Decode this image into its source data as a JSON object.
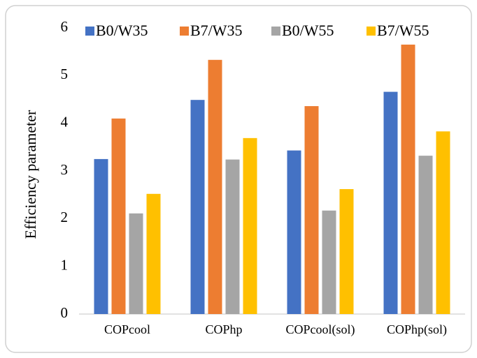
{
  "chart_data": {
    "type": "bar",
    "y_label": "Efficiency parameter",
    "categories": [
      "COPcool",
      "COPhp",
      "COPcool(sol)",
      "COPhp(sol)"
    ],
    "series": [
      {
        "name": "B0/W35",
        "color": "#4472c4",
        "values": [
          3.25,
          4.49,
          3.43,
          4.66
        ]
      },
      {
        "name": "B7/W35",
        "color": "#ed7d31",
        "values": [
          4.1,
          5.33,
          4.36,
          5.65
        ]
      },
      {
        "name": "B0/W55",
        "color": "#a5a5a5",
        "values": [
          2.11,
          3.24,
          2.17,
          3.32
        ]
      },
      {
        "name": "B7/W55",
        "color": "#ffc000",
        "values": [
          2.52,
          3.69,
          2.62,
          3.83
        ]
      }
    ],
    "ylim": [
      0,
      6
    ],
    "yticks": [
      0,
      1,
      2,
      3,
      4,
      5,
      6
    ],
    "grid": false,
    "legend": "top"
  }
}
